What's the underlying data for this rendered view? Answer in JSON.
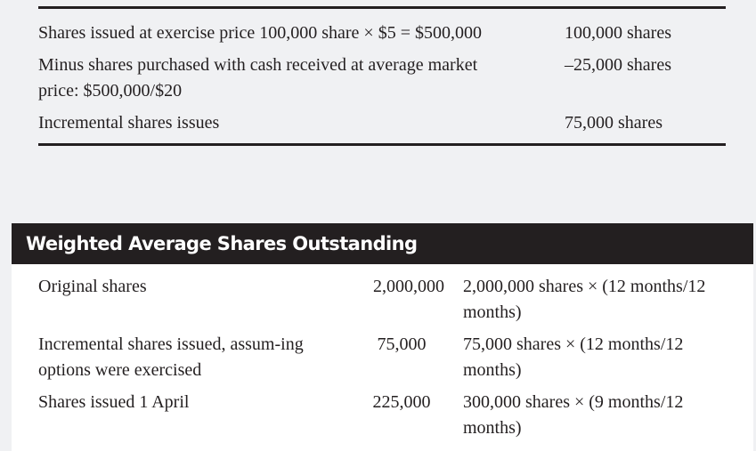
{
  "exercise_table": {
    "rows": [
      {
        "description": "Shares issued at exercise price 100,000 share × $5 = $500,000",
        "value": "100,000 shares"
      },
      {
        "description": "Minus shares purchased with cash received at average market price: $500,000/$20",
        "value": "–25,000 shares"
      },
      {
        "description": "Incremental shares issues",
        "value": "75,000 shares"
      }
    ]
  },
  "weighted_average": {
    "title": "Weighted Average Shares Outstanding",
    "rows": [
      {
        "label": "Original shares",
        "amount": "2,000,000",
        "calculation": "2,000,000 shares × (12 months/12 months)"
      },
      {
        "label": "Incremental shares issued, assum-ing options were exercised",
        "amount": "75,000",
        "calculation": "75,000 shares × (12 months/12 months)"
      },
      {
        "label": "Shares issued 1 April",
        "amount": "225,000",
        "calculation": "300,000 shares × (9 months/12 months)"
      }
    ]
  },
  "colors": {
    "page_background": "#f0f1f3",
    "header_background": "#231f20",
    "header_text": "#ffffff",
    "body_text": "#231f20",
    "panel_background": "#ffffff"
  }
}
